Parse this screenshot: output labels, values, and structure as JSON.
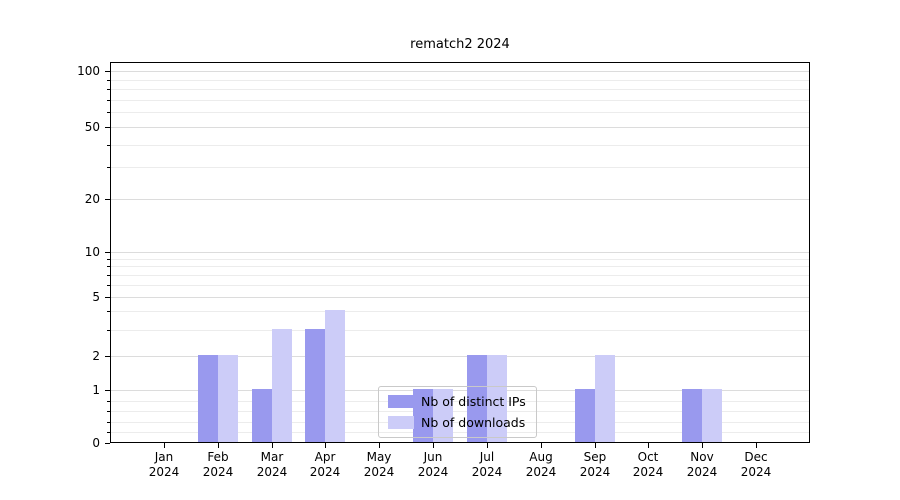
{
  "chart_data": {
    "type": "bar",
    "title": "rematch2 2024",
    "categories": [
      "Jan",
      "Feb",
      "Mar",
      "Apr",
      "May",
      "Jun",
      "Jul",
      "Aug",
      "Sep",
      "Oct",
      "Nov",
      "Dec"
    ],
    "x_tick_year": "2024",
    "series": [
      {
        "name": "Nb of distinct IPs",
        "color": "#9999ee",
        "values": [
          0,
          2,
          1,
          3,
          0,
          1,
          2,
          0,
          1,
          0,
          1,
          0
        ]
      },
      {
        "name": "Nb of downloads",
        "color": "#ccccf8",
        "values": [
          0,
          2,
          3,
          4,
          0,
          1,
          2,
          0,
          2,
          0,
          1,
          0
        ]
      }
    ],
    "yscale": "symlog",
    "yticks": [
      0,
      1,
      2,
      5,
      10,
      20,
      50,
      100
    ],
    "minor_yticks": [
      0.2,
      0.4,
      0.6,
      0.8,
      3,
      4,
      6,
      7,
      8,
      9,
      30,
      40,
      60,
      70,
      80,
      90
    ],
    "ylim": [
      0,
      112
    ],
    "grid": "both",
    "legend_position": "lower center"
  },
  "legend": {
    "items": [
      {
        "label": "Nb of distinct IPs",
        "color": "#9999ee"
      },
      {
        "label": "Nb of downloads",
        "color": "#ccccf8"
      }
    ]
  }
}
